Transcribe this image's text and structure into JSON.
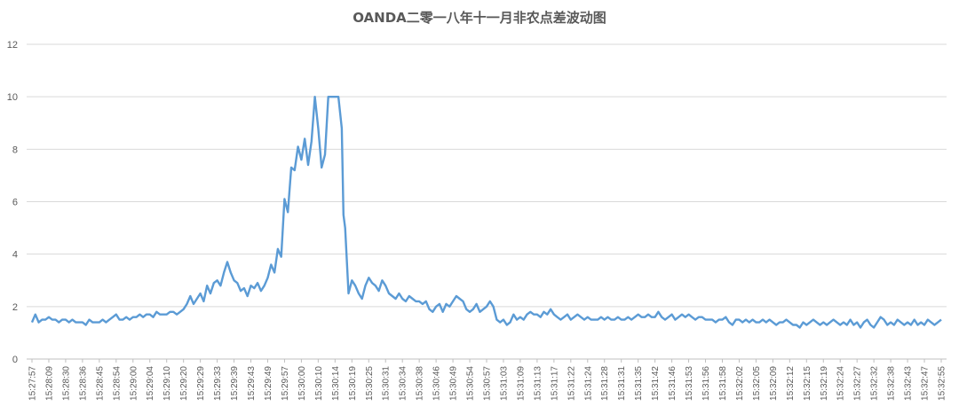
{
  "chart_data": {
    "type": "line",
    "title": "OANDA二零一八年十一月非农点差波动图",
    "xlabel": "",
    "ylabel": "",
    "ylim": [
      0,
      12
    ],
    "yticks": [
      0,
      2,
      4,
      6,
      8,
      10,
      12
    ],
    "grid": "horizontal",
    "legend": "none",
    "line_color": "#5b9bd5",
    "x_tick_labels": [
      "15:27:57",
      "15:28:09",
      "15:28:30",
      "15:28:36",
      "15:28:45",
      "15:28:54",
      "15:29:00",
      "15:29:04",
      "15:29:10",
      "15:29:20",
      "15:29:29",
      "15:29:33",
      "15:29:39",
      "15:29:43",
      "15:29:49",
      "15:29:57",
      "15:30:00",
      "15:30:10",
      "15:30:14",
      "15:30:19",
      "15:30:25",
      "15:30:31",
      "15:30:34",
      "15:30:38",
      "15:30:46",
      "15:30:49",
      "15:30:54",
      "15:30:57",
      "15:31:03",
      "15:31:09",
      "15:31:13",
      "15:31:17",
      "15:31:22",
      "15:31:24",
      "15:31:28",
      "15:31:31",
      "15:31:35",
      "15:31:42",
      "15:31:46",
      "15:31:53",
      "15:31:56",
      "15:31:58",
      "15:32:02",
      "15:32:05",
      "15:32:09",
      "15:32:12",
      "15:32:15",
      "15:32:19",
      "15:32:24",
      "15:32:27",
      "15:32:32",
      "15:32:38",
      "15:32:43",
      "15:32:47",
      "15:32:55"
    ],
    "points": [
      [
        0,
        1.4
      ],
      [
        0.2,
        1.7
      ],
      [
        0.4,
        1.4
      ],
      [
        0.6,
        1.5
      ],
      [
        0.8,
        1.5
      ],
      [
        1.0,
        1.6
      ],
      [
        1.2,
        1.5
      ],
      [
        1.4,
        1.5
      ],
      [
        1.6,
        1.4
      ],
      [
        1.8,
        1.5
      ],
      [
        2.0,
        1.5
      ],
      [
        2.2,
        1.4
      ],
      [
        2.4,
        1.5
      ],
      [
        2.6,
        1.4
      ],
      [
        2.8,
        1.4
      ],
      [
        3.0,
        1.4
      ],
      [
        3.2,
        1.3
      ],
      [
        3.4,
        1.5
      ],
      [
        3.6,
        1.4
      ],
      [
        3.8,
        1.4
      ],
      [
        4.0,
        1.4
      ],
      [
        4.2,
        1.5
      ],
      [
        4.4,
        1.4
      ],
      [
        4.6,
        1.5
      ],
      [
        4.8,
        1.6
      ],
      [
        5.0,
        1.7
      ],
      [
        5.2,
        1.5
      ],
      [
        5.4,
        1.5
      ],
      [
        5.6,
        1.6
      ],
      [
        5.8,
        1.5
      ],
      [
        6.0,
        1.6
      ],
      [
        6.2,
        1.6
      ],
      [
        6.4,
        1.7
      ],
      [
        6.6,
        1.6
      ],
      [
        6.8,
        1.7
      ],
      [
        7.0,
        1.7
      ],
      [
        7.2,
        1.6
      ],
      [
        7.4,
        1.8
      ],
      [
        7.6,
        1.7
      ],
      [
        7.8,
        1.7
      ],
      [
        8.0,
        1.7
      ],
      [
        8.2,
        1.8
      ],
      [
        8.4,
        1.8
      ],
      [
        8.6,
        1.7
      ],
      [
        8.8,
        1.8
      ],
      [
        9.0,
        1.9
      ],
      [
        9.2,
        2.1
      ],
      [
        9.4,
        2.4
      ],
      [
        9.6,
        2.1
      ],
      [
        9.8,
        2.3
      ],
      [
        10.0,
        2.5
      ],
      [
        10.2,
        2.2
      ],
      [
        10.4,
        2.8
      ],
      [
        10.6,
        2.5
      ],
      [
        10.8,
        2.9
      ],
      [
        11.0,
        3.0
      ],
      [
        11.2,
        2.8
      ],
      [
        11.4,
        3.3
      ],
      [
        11.6,
        3.7
      ],
      [
        11.8,
        3.3
      ],
      [
        12.0,
        3.0
      ],
      [
        12.2,
        2.9
      ],
      [
        12.4,
        2.6
      ],
      [
        12.6,
        2.7
      ],
      [
        12.8,
        2.4
      ],
      [
        13.0,
        2.8
      ],
      [
        13.2,
        2.7
      ],
      [
        13.4,
        2.9
      ],
      [
        13.6,
        2.6
      ],
      [
        13.8,
        2.8
      ],
      [
        14.0,
        3.1
      ],
      [
        14.2,
        3.6
      ],
      [
        14.4,
        3.3
      ],
      [
        14.6,
        4.2
      ],
      [
        14.8,
        3.9
      ],
      [
        15.0,
        6.1
      ],
      [
        15.2,
        5.6
      ],
      [
        15.4,
        7.3
      ],
      [
        15.6,
        7.2
      ],
      [
        15.8,
        8.1
      ],
      [
        16.0,
        7.6
      ],
      [
        16.2,
        8.4
      ],
      [
        16.4,
        7.4
      ],
      [
        16.6,
        8.3
      ],
      [
        16.8,
        10.0
      ],
      [
        17.0,
        8.8
      ],
      [
        17.2,
        7.3
      ],
      [
        17.4,
        7.8
      ],
      [
        17.6,
        10.0
      ],
      [
        17.8,
        10.0
      ],
      [
        18.0,
        10.0
      ],
      [
        18.2,
        10.0
      ],
      [
        18.4,
        8.8
      ],
      [
        18.5,
        5.5
      ],
      [
        18.6,
        5.0
      ],
      [
        18.8,
        2.5
      ],
      [
        19.0,
        3.0
      ],
      [
        19.2,
        2.8
      ],
      [
        19.4,
        2.5
      ],
      [
        19.6,
        2.3
      ],
      [
        19.8,
        2.8
      ],
      [
        20.0,
        3.1
      ],
      [
        20.2,
        2.9
      ],
      [
        20.4,
        2.8
      ],
      [
        20.6,
        2.6
      ],
      [
        20.8,
        3.0
      ],
      [
        21.0,
        2.8
      ],
      [
        21.2,
        2.5
      ],
      [
        21.4,
        2.4
      ],
      [
        21.6,
        2.3
      ],
      [
        21.8,
        2.5
      ],
      [
        22.0,
        2.3
      ],
      [
        22.2,
        2.2
      ],
      [
        22.4,
        2.4
      ],
      [
        22.6,
        2.3
      ],
      [
        22.8,
        2.2
      ],
      [
        23.0,
        2.2
      ],
      [
        23.2,
        2.1
      ],
      [
        23.4,
        2.2
      ],
      [
        23.6,
        1.9
      ],
      [
        23.8,
        1.8
      ],
      [
        24.0,
        2.0
      ],
      [
        24.2,
        2.1
      ],
      [
        24.4,
        1.8
      ],
      [
        24.6,
        2.1
      ],
      [
        24.8,
        2.0
      ],
      [
        25.0,
        2.2
      ],
      [
        25.2,
        2.4
      ],
      [
        25.4,
        2.3
      ],
      [
        25.6,
        2.2
      ],
      [
        25.8,
        1.9
      ],
      [
        26.0,
        1.8
      ],
      [
        26.2,
        1.9
      ],
      [
        26.4,
        2.1
      ],
      [
        26.6,
        1.8
      ],
      [
        26.8,
        1.9
      ],
      [
        27.0,
        2.0
      ],
      [
        27.2,
        2.2
      ],
      [
        27.4,
        2.0
      ],
      [
        27.6,
        1.5
      ],
      [
        27.8,
        1.4
      ],
      [
        28.0,
        1.5
      ],
      [
        28.2,
        1.3
      ],
      [
        28.4,
        1.4
      ],
      [
        28.6,
        1.7
      ],
      [
        28.8,
        1.5
      ],
      [
        29.0,
        1.6
      ],
      [
        29.2,
        1.5
      ],
      [
        29.4,
        1.7
      ],
      [
        29.6,
        1.8
      ],
      [
        29.8,
        1.7
      ],
      [
        30.0,
        1.7
      ],
      [
        30.2,
        1.6
      ],
      [
        30.4,
        1.8
      ],
      [
        30.6,
        1.7
      ],
      [
        30.8,
        1.9
      ],
      [
        31.0,
        1.7
      ],
      [
        31.2,
        1.6
      ],
      [
        31.4,
        1.5
      ],
      [
        31.6,
        1.6
      ],
      [
        31.8,
        1.7
      ],
      [
        32.0,
        1.5
      ],
      [
        32.2,
        1.6
      ],
      [
        32.4,
        1.7
      ],
      [
        32.6,
        1.6
      ],
      [
        32.8,
        1.5
      ],
      [
        33.0,
        1.6
      ],
      [
        33.2,
        1.5
      ],
      [
        33.4,
        1.5
      ],
      [
        33.6,
        1.5
      ],
      [
        33.8,
        1.6
      ],
      [
        34.0,
        1.5
      ],
      [
        34.2,
        1.6
      ],
      [
        34.4,
        1.5
      ],
      [
        34.6,
        1.5
      ],
      [
        34.8,
        1.6
      ],
      [
        35.0,
        1.5
      ],
      [
        35.2,
        1.5
      ],
      [
        35.4,
        1.6
      ],
      [
        35.6,
        1.5
      ],
      [
        35.8,
        1.6
      ],
      [
        36.0,
        1.7
      ],
      [
        36.2,
        1.6
      ],
      [
        36.4,
        1.6
      ],
      [
        36.6,
        1.7
      ],
      [
        36.8,
        1.6
      ],
      [
        37.0,
        1.6
      ],
      [
        37.2,
        1.8
      ],
      [
        37.4,
        1.6
      ],
      [
        37.6,
        1.5
      ],
      [
        37.8,
        1.6
      ],
      [
        38.0,
        1.7
      ],
      [
        38.2,
        1.5
      ],
      [
        38.4,
        1.6
      ],
      [
        38.6,
        1.7
      ],
      [
        38.8,
        1.6
      ],
      [
        39.0,
        1.7
      ],
      [
        39.2,
        1.6
      ],
      [
        39.4,
        1.5
      ],
      [
        39.6,
        1.6
      ],
      [
        39.8,
        1.6
      ],
      [
        40.0,
        1.5
      ],
      [
        40.2,
        1.5
      ],
      [
        40.4,
        1.5
      ],
      [
        40.6,
        1.4
      ],
      [
        40.8,
        1.5
      ],
      [
        41.0,
        1.5
      ],
      [
        41.2,
        1.6
      ],
      [
        41.4,
        1.4
      ],
      [
        41.6,
        1.3
      ],
      [
        41.8,
        1.5
      ],
      [
        42.0,
        1.5
      ],
      [
        42.2,
        1.4
      ],
      [
        42.4,
        1.5
      ],
      [
        42.6,
        1.4
      ],
      [
        42.8,
        1.5
      ],
      [
        43.0,
        1.4
      ],
      [
        43.2,
        1.4
      ],
      [
        43.4,
        1.5
      ],
      [
        43.6,
        1.4
      ],
      [
        43.8,
        1.5
      ],
      [
        44.0,
        1.4
      ],
      [
        44.2,
        1.3
      ],
      [
        44.4,
        1.4
      ],
      [
        44.6,
        1.4
      ],
      [
        44.8,
        1.5
      ],
      [
        45.0,
        1.4
      ],
      [
        45.2,
        1.3
      ],
      [
        45.4,
        1.3
      ],
      [
        45.6,
        1.2
      ],
      [
        45.8,
        1.4
      ],
      [
        46.0,
        1.3
      ],
      [
        46.2,
        1.4
      ],
      [
        46.4,
        1.5
      ],
      [
        46.6,
        1.4
      ],
      [
        46.8,
        1.3
      ],
      [
        47.0,
        1.4
      ],
      [
        47.2,
        1.3
      ],
      [
        47.4,
        1.4
      ],
      [
        47.6,
        1.5
      ],
      [
        47.8,
        1.4
      ],
      [
        48.0,
        1.3
      ],
      [
        48.2,
        1.4
      ],
      [
        48.4,
        1.3
      ],
      [
        48.6,
        1.5
      ],
      [
        48.8,
        1.3
      ],
      [
        49.0,
        1.4
      ],
      [
        49.2,
        1.2
      ],
      [
        49.4,
        1.4
      ],
      [
        49.6,
        1.5
      ],
      [
        49.8,
        1.3
      ],
      [
        50.0,
        1.2
      ],
      [
        50.2,
        1.4
      ],
      [
        50.4,
        1.6
      ],
      [
        50.6,
        1.5
      ],
      [
        50.8,
        1.3
      ],
      [
        51.0,
        1.4
      ],
      [
        51.2,
        1.3
      ],
      [
        51.4,
        1.5
      ],
      [
        51.6,
        1.4
      ],
      [
        51.8,
        1.3
      ],
      [
        52.0,
        1.4
      ],
      [
        52.2,
        1.3
      ],
      [
        52.4,
        1.5
      ],
      [
        52.6,
        1.3
      ],
      [
        52.8,
        1.4
      ],
      [
        53.0,
        1.3
      ],
      [
        53.2,
        1.5
      ],
      [
        53.4,
        1.4
      ],
      [
        53.6,
        1.3
      ],
      [
        53.8,
        1.4
      ],
      [
        54.0,
        1.5
      ]
    ]
  }
}
